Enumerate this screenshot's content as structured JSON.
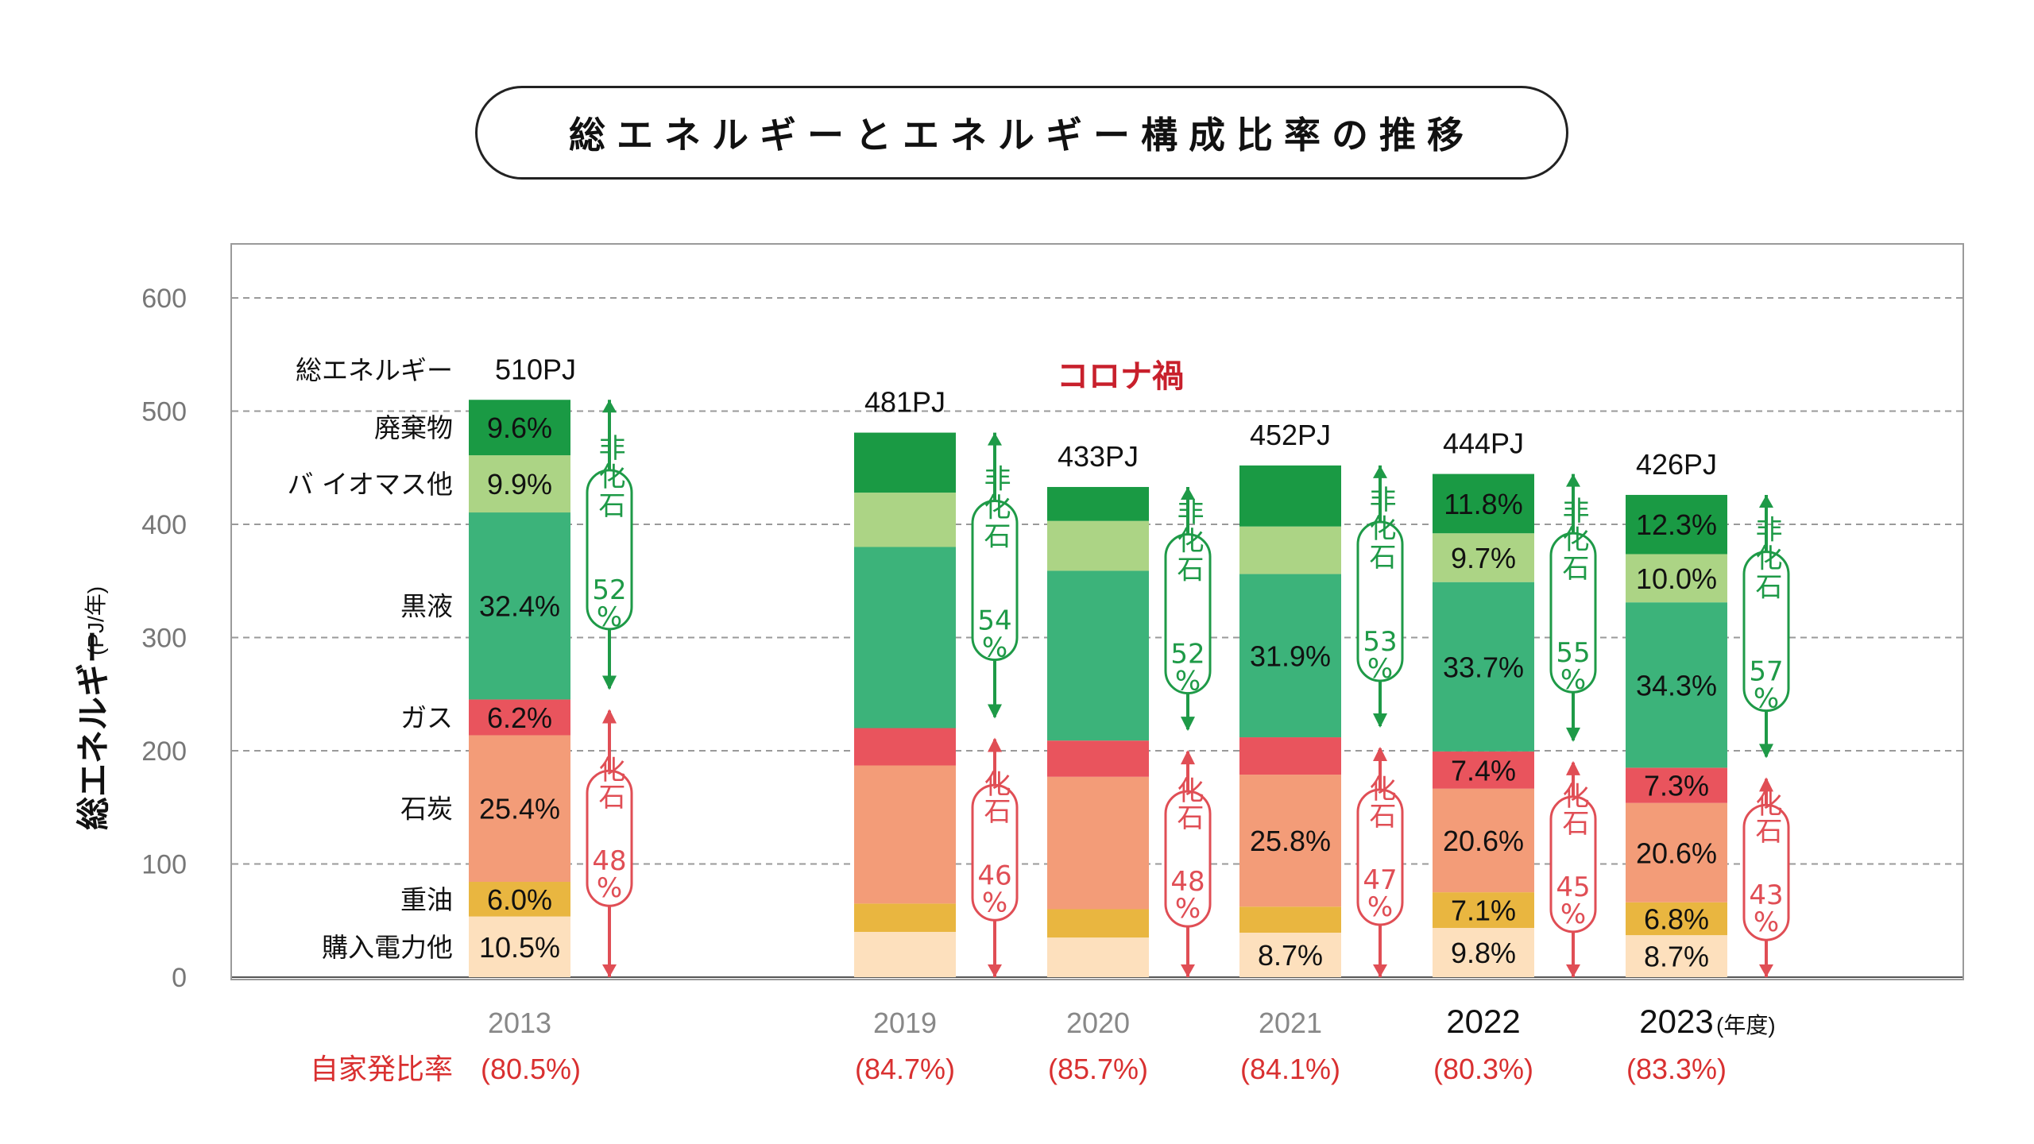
{
  "title": "総エネルギーとエネルギー構成比率の推移",
  "y_axis_label": "総エネルギー",
  "y_axis_unit": "(PJ/年)",
  "total_label": "総エネルギー",
  "covid_label": "コロナ禍",
  "self_gen_label": "自家発比率",
  "year_unit": "(年度)",
  "nonfossil_word": "非化石",
  "fossil_word": "化石",
  "colors": {
    "buy": "#fde0bd",
    "oil": "#e9b640",
    "coal": "#f39c78",
    "gas": "#e9545d",
    "black_liquor": "#3cb37a",
    "bio": "#acd485",
    "waste": "#1a9a44",
    "nonfossil_arrow": "#1e9a47",
    "fossil_arrow": "#e04e55",
    "ratio_text": "#d93030"
  },
  "chart_data": {
    "type": "bar",
    "stacked": true,
    "ylim": [
      0,
      650
    ],
    "yticks": [
      "0",
      "100",
      "200",
      "300",
      "400",
      "500",
      "600"
    ],
    "categories": [
      "2013",
      "2019",
      "2020",
      "2021",
      "2022",
      "2023"
    ],
    "totals": [
      "510PJ",
      "481PJ",
      "433PJ",
      "452PJ",
      "444PJ",
      "426PJ"
    ],
    "self_generation_ratio": [
      "(80.5%)",
      "(84.7%)",
      "(85.7%)",
      "(84.1%)",
      "(80.3%)",
      "(83.3%)"
    ],
    "series": [
      {
        "name": "購入電力他",
        "values": [
          53.6,
          40,
          35,
          39.3,
          43.5,
          37.1
        ],
        "labels": [
          "10.5%",
          "",
          "",
          "8.7%",
          "9.8%",
          "8.7%"
        ]
      },
      {
        "name": "重油",
        "values": [
          30.6,
          25,
          25,
          23,
          31.5,
          29
        ],
        "labels": [
          "6.0%",
          "",
          "",
          "",
          "7.1%",
          "6.8%"
        ]
      },
      {
        "name": "石炭",
        "values": [
          129.5,
          122,
          117,
          116.6,
          91.5,
          87.8
        ],
        "labels": [
          "25.4%",
          "",
          "",
          "25.8%",
          "20.6%",
          "20.6%"
        ]
      },
      {
        "name": "ガス",
        "values": [
          31.6,
          33,
          32,
          33,
          32.9,
          31.1
        ],
        "labels": [
          "6.2%",
          "",
          "",
          "",
          "7.4%",
          "7.3%"
        ]
      },
      {
        "name": "黒液",
        "values": [
          165.2,
          160,
          150,
          144.2,
          149.6,
          146.1
        ],
        "labels": [
          "32.4%",
          "",
          "",
          "31.9%",
          "33.7%",
          "34.3%"
        ]
      },
      {
        "name": "バイオマス他",
        "values": [
          50.5,
          48,
          44,
          42,
          43.1,
          42.6
        ],
        "labels": [
          "9.9%",
          "",
          "",
          "",
          "9.7%",
          "10.0%"
        ]
      },
      {
        "name": "廃棄物",
        "values": [
          49,
          53,
          30,
          53.9,
          52.4,
          52.3
        ],
        "labels": [
          "9.6%",
          "",
          "",
          "",
          "11.8%",
          "12.3%"
        ]
      }
    ],
    "category_labels": [
      "購入電力他",
      "重油",
      "石炭",
      "ガス",
      "黒液",
      "バ イオマス他",
      "廃棄物"
    ],
    "nonfossil_share": [
      "52",
      "54",
      "52",
      "53",
      "55",
      "57"
    ],
    "fossil_share": [
      "48",
      "46",
      "48",
      "47",
      "45",
      "43"
    ],
    "highlighted_years": [
      "2022",
      "2023"
    ]
  }
}
